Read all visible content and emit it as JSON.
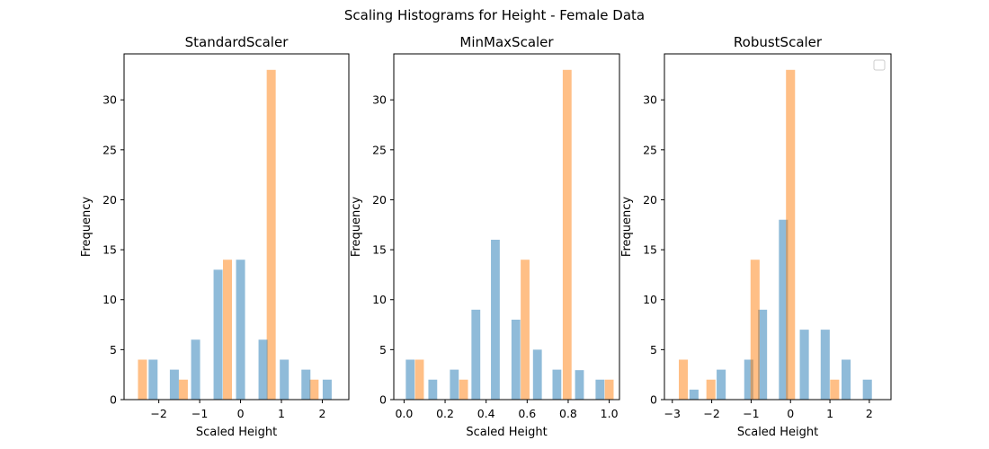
{
  "figure": {
    "title": "Scaling Histograms for Height - Female Data"
  },
  "colors": {
    "series_a": "#1f77b4",
    "series_b": "#ff7f0e",
    "bar_alpha": 0.5,
    "axis": "#000000"
  },
  "chart_data": [
    {
      "type": "bar",
      "title": "StandardScaler",
      "xlabel": "Scaled Height",
      "ylabel": "Frequency",
      "xlim": [
        -2.85,
        2.65
      ],
      "ylim": [
        0,
        34.6
      ],
      "xticks": [
        -2,
        -1,
        0,
        1,
        2
      ],
      "yticks": [
        0,
        5,
        10,
        15,
        20,
        25,
        30
      ],
      "grid": false,
      "legend": false,
      "bar_width": 0.22,
      "series": [
        {
          "color": "series_b",
          "bars": [
            {
              "x": -2.4,
              "y": 4
            },
            {
              "x": -1.4,
              "y": 2
            },
            {
              "x": -0.32,
              "y": 14
            },
            {
              "x": 0.75,
              "y": 33
            },
            {
              "x": 1.8,
              "y": 2
            }
          ]
        },
        {
          "color": "series_a",
          "bars": [
            {
              "x": -2.14,
              "y": 4
            },
            {
              "x": -1.62,
              "y": 3
            },
            {
              "x": -1.1,
              "y": 6
            },
            {
              "x": -0.55,
              "y": 13
            },
            {
              "x": 0.0,
              "y": 14
            },
            {
              "x": 0.55,
              "y": 6
            },
            {
              "x": 1.07,
              "y": 4
            },
            {
              "x": 1.6,
              "y": 3
            },
            {
              "x": 2.12,
              "y": 2
            }
          ]
        }
      ]
    },
    {
      "type": "bar",
      "title": "MinMaxScaler",
      "xlabel": "Scaled Height",
      "ylabel": "Frequency",
      "xlim": [
        -0.05,
        1.05
      ],
      "ylim": [
        0,
        34.6
      ],
      "xticks": [
        0.0,
        0.2,
        0.4,
        0.6,
        0.8,
        1.0
      ],
      "xtick_labels": [
        "0.0",
        "0.2",
        "0.4",
        "0.6",
        "0.8",
        "1.0"
      ],
      "yticks": [
        0,
        5,
        10,
        15,
        20,
        25,
        30
      ],
      "grid": false,
      "legend": false,
      "bar_width": 0.043,
      "series": [
        {
          "color": "series_a",
          "bars": [
            {
              "x": 0.03,
              "y": 4
            },
            {
              "x": 0.14,
              "y": 2
            },
            {
              "x": 0.245,
              "y": 3
            },
            {
              "x": 0.35,
              "y": 9
            },
            {
              "x": 0.445,
              "y": 16
            },
            {
              "x": 0.545,
              "y": 8
            },
            {
              "x": 0.65,
              "y": 5
            },
            {
              "x": 0.745,
              "y": 3
            },
            {
              "x": 0.855,
              "y": 2.95
            },
            {
              "x": 0.955,
              "y": 2
            }
          ]
        },
        {
          "color": "series_b",
          "bars": [
            {
              "x": 0.075,
              "y": 4
            },
            {
              "x": 0.29,
              "y": 2
            },
            {
              "x": 0.59,
              "y": 14
            },
            {
              "x": 0.795,
              "y": 33
            },
            {
              "x": 1.0,
              "y": 2
            }
          ]
        }
      ]
    },
    {
      "type": "bar",
      "title": "RobustScaler",
      "xlabel": "Scaled Height",
      "ylabel": "Frequency",
      "xlim": [
        -3.2,
        2.55
      ],
      "ylim": [
        0,
        34.6
      ],
      "xticks": [
        -3,
        -2,
        -1,
        0,
        1,
        2
      ],
      "yticks": [
        0,
        5,
        10,
        15,
        20,
        25,
        30
      ],
      "grid": false,
      "legend": true,
      "legend_position": "upper right",
      "bar_width": 0.23,
      "series": [
        {
          "color": "series_a",
          "bars": [
            {
              "x": -2.45,
              "y": 1
            },
            {
              "x": -1.76,
              "y": 3
            },
            {
              "x": -1.06,
              "y": 4
            },
            {
              "x": -0.71,
              "y": 9
            },
            {
              "x": -0.18,
              "y": 18
            },
            {
              "x": 0.35,
              "y": 7
            },
            {
              "x": 0.88,
              "y": 7
            },
            {
              "x": 1.41,
              "y": 4
            },
            {
              "x": 1.95,
              "y": 2
            }
          ]
        },
        {
          "color": "series_b",
          "bars": [
            {
              "x": -2.72,
              "y": 4
            },
            {
              "x": -2.02,
              "y": 2
            },
            {
              "x": -0.9,
              "y": 14
            },
            {
              "x": 0.0,
              "y": 33
            },
            {
              "x": 1.12,
              "y": 2
            }
          ]
        }
      ]
    }
  ]
}
